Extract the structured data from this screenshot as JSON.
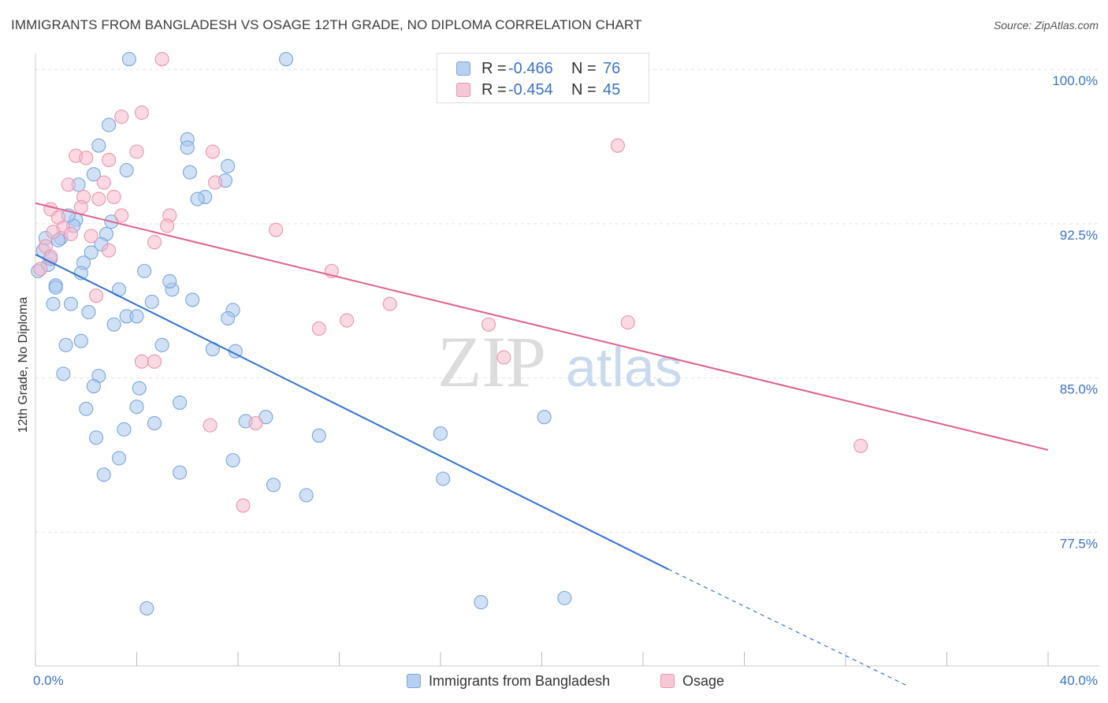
{
  "title": "IMMIGRANTS FROM BANGLADESH VS OSAGE 12TH GRADE, NO DIPLOMA CORRELATION CHART",
  "source": "Source: ZipAtlas.com",
  "watermark": {
    "zip": "ZIP",
    "atlas": "atlas"
  },
  "legend": {
    "r_label": "R =",
    "n_label": "N =",
    "series": [
      {
        "r": "-0.466",
        "n": "76"
      },
      {
        "r": "-0.454",
        "n": "45"
      }
    ]
  },
  "colors": {
    "blue_fill": "#a9c8ef",
    "blue_stroke": "#7aa6dc",
    "blue_line": "#2f73d0",
    "pink_fill": "#f6b9cc",
    "pink_stroke": "#eb94b0",
    "pink_line": "#e0608c",
    "axis_text": "#3a73c8",
    "grid": "#e4e4e4"
  },
  "chart_data": {
    "type": "scatter",
    "title": "IMMIGRANTS FROM BANGLADESH VS OSAGE 12TH GRADE, NO DIPLOMA CORRELATION CHART",
    "xlabel": "",
    "ylabel": "12th Grade, No Diploma",
    "xlim": [
      0,
      40
    ],
    "ylim": [
      71.0,
      101.0
    ],
    "x_tick_labels": [
      "0.0%",
      "40.0%"
    ],
    "y_ticks": [
      77.5,
      85.0,
      92.5,
      100.0
    ],
    "y_tick_labels": [
      "77.5%",
      "85.0%",
      "92.5%",
      "100.0%"
    ],
    "grid": true,
    "legend_position": "bottom",
    "series": [
      {
        "name": "Immigrants from Bangladesh",
        "color": "blue",
        "r": -0.466,
        "n": 76,
        "trend": {
          "x0": 0,
          "y0": 91.0,
          "x1": 25,
          "y1": 75.7,
          "dashed_to_x": 34.5,
          "dashed_to_y": 70.0
        },
        "points": [
          [
            3.7,
            100.5
          ],
          [
            9.9,
            100.5
          ],
          [
            2.9,
            97.3
          ],
          [
            6.0,
            96.6
          ],
          [
            2.5,
            96.3
          ],
          [
            6.0,
            96.2
          ],
          [
            7.6,
            95.3
          ],
          [
            3.6,
            95.1
          ],
          [
            6.1,
            95.0
          ],
          [
            2.3,
            94.9
          ],
          [
            1.7,
            94.4
          ],
          [
            7.5,
            94.6
          ],
          [
            6.7,
            93.8
          ],
          [
            6.4,
            93.7
          ],
          [
            1.6,
            92.7
          ],
          [
            3.0,
            92.6
          ],
          [
            1.5,
            92.4
          ],
          [
            2.8,
            92.0
          ],
          [
            1.0,
            91.8
          ],
          [
            0.4,
            91.8
          ],
          [
            0.3,
            91.2
          ],
          [
            2.2,
            91.1
          ],
          [
            0.5,
            90.5
          ],
          [
            0.1,
            90.2
          ],
          [
            1.9,
            90.6
          ],
          [
            4.3,
            90.2
          ],
          [
            1.8,
            90.1
          ],
          [
            0.8,
            89.5
          ],
          [
            0.8,
            89.4
          ],
          [
            3.3,
            89.3
          ],
          [
            5.4,
            89.3
          ],
          [
            6.2,
            88.8
          ],
          [
            4.6,
            88.7
          ],
          [
            0.7,
            88.6
          ],
          [
            1.4,
            88.6
          ],
          [
            7.8,
            88.3
          ],
          [
            2.1,
            88.2
          ],
          [
            3.6,
            88.0
          ],
          [
            4.0,
            88.0
          ],
          [
            7.6,
            87.9
          ],
          [
            3.1,
            87.6
          ],
          [
            1.8,
            86.8
          ],
          [
            5.0,
            86.6
          ],
          [
            1.2,
            86.6
          ],
          [
            7.0,
            86.4
          ],
          [
            7.9,
            86.3
          ],
          [
            1.1,
            85.2
          ],
          [
            2.5,
            85.1
          ],
          [
            2.3,
            84.6
          ],
          [
            4.1,
            84.5
          ],
          [
            5.7,
            83.8
          ],
          [
            4.0,
            83.6
          ],
          [
            2.0,
            83.5
          ],
          [
            9.1,
            83.1
          ],
          [
            8.3,
            82.9
          ],
          [
            4.7,
            82.8
          ],
          [
            3.5,
            82.5
          ],
          [
            20.1,
            83.1
          ],
          [
            16.0,
            82.3
          ],
          [
            11.2,
            82.2
          ],
          [
            2.4,
            82.1
          ],
          [
            3.3,
            81.1
          ],
          [
            7.8,
            81.0
          ],
          [
            5.7,
            80.4
          ],
          [
            2.7,
            80.3
          ],
          [
            16.1,
            80.1
          ],
          [
            9.4,
            79.8
          ],
          [
            10.7,
            79.3
          ],
          [
            4.4,
            73.8
          ],
          [
            17.6,
            74.1
          ],
          [
            20.9,
            74.3
          ],
          [
            0.6,
            90.8
          ],
          [
            0.9,
            91.7
          ],
          [
            1.3,
            92.9
          ],
          [
            2.6,
            91.5
          ],
          [
            5.3,
            89.7
          ]
        ]
      },
      {
        "name": "Osage",
        "color": "pink",
        "r": -0.454,
        "n": 45,
        "trend": {
          "x0": 0,
          "y0": 93.5,
          "x1": 40,
          "y1": 81.5
        },
        "points": [
          [
            5.0,
            100.5
          ],
          [
            4.2,
            97.9
          ],
          [
            3.4,
            97.7
          ],
          [
            4.0,
            96.0
          ],
          [
            7.0,
            96.0
          ],
          [
            23.0,
            96.3
          ],
          [
            1.6,
            95.8
          ],
          [
            2.0,
            95.7
          ],
          [
            2.9,
            95.6
          ],
          [
            1.3,
            94.4
          ],
          [
            2.7,
            94.5
          ],
          [
            7.1,
            94.5
          ],
          [
            3.1,
            93.8
          ],
          [
            2.5,
            93.7
          ],
          [
            1.9,
            93.8
          ],
          [
            1.8,
            93.3
          ],
          [
            0.6,
            93.2
          ],
          [
            0.9,
            92.8
          ],
          [
            3.4,
            92.9
          ],
          [
            5.3,
            92.9
          ],
          [
            5.2,
            92.4
          ],
          [
            1.1,
            92.3
          ],
          [
            9.5,
            92.2
          ],
          [
            0.7,
            92.1
          ],
          [
            1.4,
            92.0
          ],
          [
            2.2,
            91.9
          ],
          [
            4.7,
            91.6
          ],
          [
            0.4,
            91.4
          ],
          [
            0.6,
            90.9
          ],
          [
            0.2,
            90.3
          ],
          [
            11.7,
            90.2
          ],
          [
            14.0,
            88.6
          ],
          [
            12.3,
            87.8
          ],
          [
            23.4,
            87.7
          ],
          [
            17.9,
            87.6
          ],
          [
            11.2,
            87.4
          ],
          [
            2.4,
            89.0
          ],
          [
            18.5,
            86.0
          ],
          [
            4.2,
            85.8
          ],
          [
            4.7,
            85.8
          ],
          [
            6.9,
            82.7
          ],
          [
            8.7,
            82.8
          ],
          [
            32.6,
            81.7
          ],
          [
            8.2,
            78.8
          ],
          [
            2.9,
            91.2
          ]
        ]
      }
    ]
  }
}
